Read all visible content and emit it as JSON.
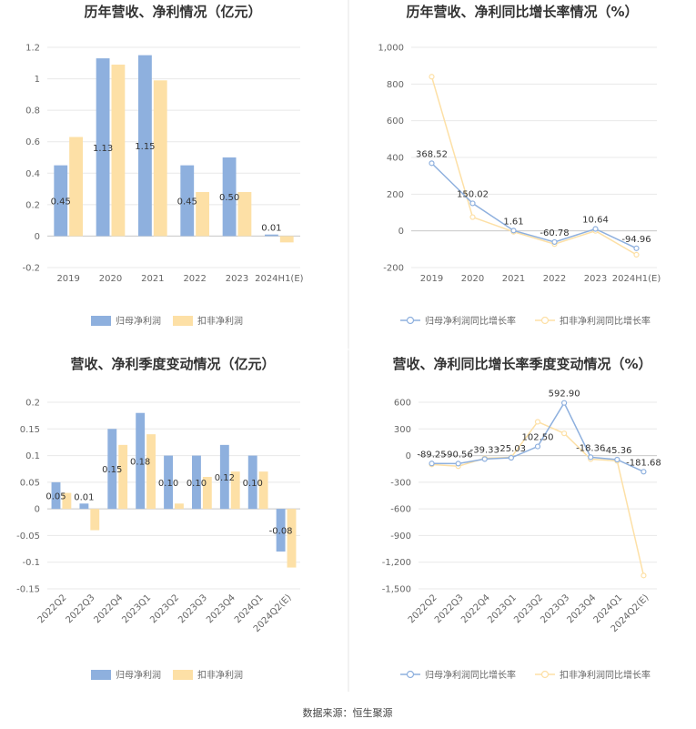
{
  "source": "数据来源：恒生聚源",
  "colors": {
    "series1": "#8eb0de",
    "series2": "#fde0a6",
    "grid": "#e8e8e8",
    "axis": "#cccccc",
    "divider": "#e6e6e6"
  },
  "chart_data": [
    {
      "type": "bar",
      "title": "历年营收、净利情况（亿元）",
      "categories": [
        "2019",
        "2020",
        "2021",
        "2022",
        "2023",
        "2024H1(E)"
      ],
      "series": [
        {
          "name": "归母净利润",
          "values": [
            0.45,
            1.13,
            1.15,
            0.45,
            0.5,
            0.01
          ],
          "labels": [
            "0.45",
            "1.13",
            "1.15",
            "0.45",
            "0.50",
            "0.01"
          ]
        },
        {
          "name": "扣非净利润",
          "values": [
            0.63,
            1.09,
            0.99,
            0.28,
            0.28,
            -0.04
          ]
        }
      ],
      "yticks": [
        "-0.2",
        "0",
        "0.2",
        "0.4",
        "0.6",
        "0.8",
        "1",
        "1.2"
      ],
      "ylim": [
        -0.2,
        1.2
      ],
      "grid": true,
      "legend": "bottom"
    },
    {
      "type": "line",
      "title": "历年营收、净利同比增长率情况（%）",
      "categories": [
        "2019",
        "2020",
        "2021",
        "2022",
        "2023",
        "2024H1(E)"
      ],
      "series": [
        {
          "name": "归母净利润同比增长率",
          "values": [
            368.52,
            150.02,
            1.61,
            -60.78,
            10.64,
            -94.96
          ],
          "labels": [
            "368.52",
            "150.02",
            "1.61",
            "-60.78",
            "10.64",
            "-94.96"
          ]
        },
        {
          "name": "扣非净利润同比增长率",
          "values": [
            840,
            75,
            -5,
            -72,
            0,
            -130
          ]
        }
      ],
      "yticks": [
        "-200",
        "0",
        "200",
        "400",
        "600",
        "800",
        "1,000"
      ],
      "ylim": [
        -200,
        1000
      ],
      "grid": true,
      "legend": "bottom"
    },
    {
      "type": "bar",
      "title": "营收、净利季度变动情况（亿元）",
      "categories": [
        "2022Q2",
        "2022Q3",
        "2022Q4",
        "2023Q1",
        "2023Q2",
        "2023Q3",
        "2023Q4",
        "2024Q1",
        "2024Q2(E)"
      ],
      "series": [
        {
          "name": "归母净利润",
          "values": [
            0.05,
            0.01,
            0.15,
            0.18,
            0.1,
            0.1,
            0.12,
            0.1,
            -0.08
          ],
          "labels": [
            "0.05",
            "0.01",
            "0.15",
            "0.18",
            "0.10",
            "0.10",
            "0.12",
            "0.10",
            "-0.08"
          ]
        },
        {
          "name": "扣非净利润",
          "values": [
            0.03,
            -0.04,
            0.12,
            0.14,
            0.01,
            0.06,
            0.07,
            0.07,
            -0.11
          ]
        }
      ],
      "yticks": [
        "-0.15",
        "-0.1",
        "-0.05",
        "0",
        "0.05",
        "0.1",
        "0.15",
        "0.2"
      ],
      "ylim": [
        -0.15,
        0.2
      ],
      "grid": true,
      "legend": "bottom"
    },
    {
      "type": "line",
      "title": "营收、净利同比增长率季度变动情况（%）",
      "categories": [
        "2022Q2",
        "2022Q3",
        "2022Q4",
        "2023Q1",
        "2023Q2",
        "2023Q3",
        "2023Q4",
        "2024Q1",
        "2024Q2(E)"
      ],
      "series": [
        {
          "name": "归母净利润同比增长率",
          "values": [
            -89.25,
            -90.56,
            -39.33,
            -25.03,
            102.5,
            592.9,
            -18.36,
            -45.36,
            -181.68
          ],
          "labels": [
            "-89.25",
            "-90.56",
            "-39.33",
            "-25.03",
            "102.50",
            "592.90",
            "-18.36",
            "-45.36",
            "-181.68"
          ]
        },
        {
          "name": "扣非净利润同比增长率",
          "values": [
            -100,
            -120,
            -30,
            -20,
            380,
            250,
            -40,
            -60,
            -1350
          ]
        }
      ],
      "yticks": [
        "-1,500",
        "-1,200",
        "-900",
        "-600",
        "-300",
        "0",
        "300",
        "600"
      ],
      "ylim": [
        -1500,
        600
      ],
      "grid": true,
      "legend": "bottom"
    }
  ]
}
